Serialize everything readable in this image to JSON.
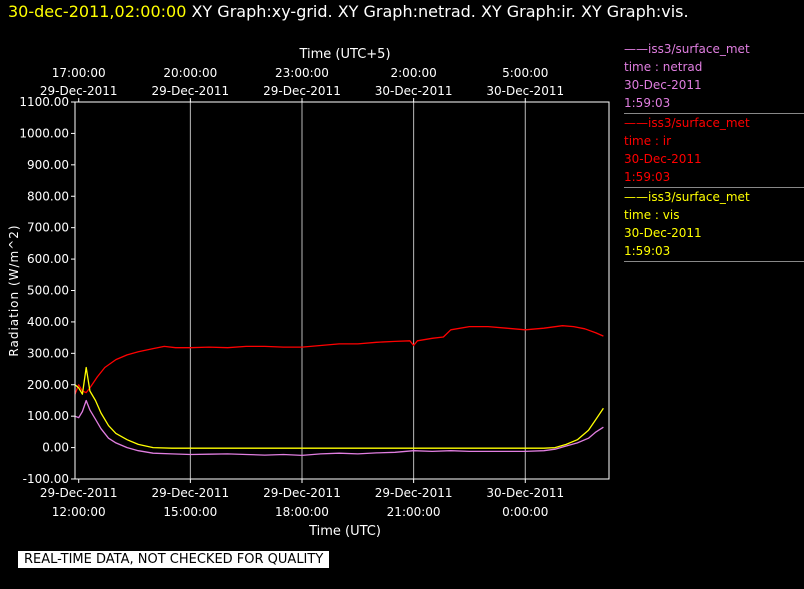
{
  "header": {
    "timestamp": "30-dec-2011,02:00:00",
    "graphs": "XY Graph:xy-grid.  XY Graph:netrad.  XY Graph:ir.  XY Graph:vis."
  },
  "legend": [
    {
      "source": "——iss3/surface_met",
      "variable": "time : netrad",
      "date": "30-Dec-2011",
      "time": "1:59:03",
      "color": "#e07ee0"
    },
    {
      "source": "——iss3/surface_met",
      "variable": "time : ir",
      "date": "30-Dec-2011",
      "time": "1:59:03",
      "color": "#ff0000"
    },
    {
      "source": "——iss3/surface_met",
      "variable": "time : vis",
      "date": "30-Dec-2011",
      "time": "1:59:03",
      "color": "#ffff00"
    }
  ],
  "notice": "REAL-TIME DATA, NOT CHECKED FOR QUALITY",
  "chart_data": {
    "type": "line",
    "title": "",
    "xlabel": "Time (UTC)",
    "x2label": "Time (UTC+5)",
    "ylabel": "Radiation (W/m^2)",
    "xlim": [
      11.9,
      26.25
    ],
    "ylim": [
      -100,
      1100
    ],
    "yticks": [
      "-100.00",
      "0.00",
      "100.00",
      "200.00",
      "300.00",
      "400.00",
      "500.00",
      "600.00",
      "700.00",
      "800.00",
      "900.00",
      "1000.00",
      "1100.00"
    ],
    "xticks": [
      {
        "x": 12,
        "date": "29-Dec-2011",
        "time": "12:00:00"
      },
      {
        "x": 15,
        "date": "29-Dec-2011",
        "time": "15:00:00"
      },
      {
        "x": 18,
        "date": "29-Dec-2011",
        "time": "18:00:00"
      },
      {
        "x": 21,
        "date": "29-Dec-2011",
        "time": "21:00:00"
      },
      {
        "x": 24,
        "date": "30-Dec-2011",
        "time": "0:00:00"
      }
    ],
    "x2ticks": [
      {
        "x": 12,
        "time": "17:00:00",
        "date": "29-Dec-2011"
      },
      {
        "x": 15,
        "time": "20:00:00",
        "date": "29-Dec-2011"
      },
      {
        "x": 18,
        "time": "23:00:00",
        "date": "29-Dec-2011"
      },
      {
        "x": 21,
        "time": "2:00:00",
        "date": "30-Dec-2011"
      },
      {
        "x": 24,
        "time": "5:00:00",
        "date": "30-Dec-2011"
      }
    ],
    "grid": "vertical",
    "legend": "right",
    "series": [
      {
        "key": "netrad",
        "color": "#e07ee0",
        "x": [
          11.9,
          12.0,
          12.1,
          12.2,
          12.3,
          12.45,
          12.6,
          12.8,
          13.0,
          13.3,
          13.6,
          14.0,
          14.5,
          15.0,
          15.5,
          16.0,
          16.5,
          17.0,
          17.5,
          18.0,
          18.5,
          19.0,
          19.5,
          20.0,
          20.5,
          21.0,
          21.5,
          22.0,
          22.5,
          23.0,
          23.5,
          24.0,
          24.5,
          24.8,
          25.1,
          25.4,
          25.7,
          25.9,
          26.1
        ],
        "y": [
          100,
          95,
          115,
          150,
          120,
          90,
          60,
          30,
          15,
          0,
          -10,
          -18,
          -20,
          -22,
          -21,
          -20,
          -22,
          -24,
          -22,
          -25,
          -20,
          -18,
          -20,
          -17,
          -15,
          -10,
          -12,
          -10,
          -12,
          -12,
          -12,
          -12,
          -10,
          -5,
          5,
          15,
          30,
          50,
          65
        ]
      },
      {
        "key": "ir",
        "color": "#ff0000",
        "x": [
          11.9,
          12.0,
          12.1,
          12.2,
          12.3,
          12.5,
          12.7,
          13.0,
          13.3,
          13.6,
          14.0,
          14.3,
          14.6,
          15.0,
          15.5,
          16.0,
          16.5,
          17.0,
          17.5,
          18.0,
          18.5,
          19.0,
          19.5,
          20.0,
          20.5,
          20.9,
          21.0,
          21.1,
          21.5,
          21.8,
          22.0,
          22.5,
          23.0,
          23.5,
          24.0,
          24.5,
          25.0,
          25.3,
          25.6,
          25.9,
          26.1
        ],
        "y": [
          170,
          200,
          180,
          175,
          190,
          225,
          255,
          280,
          295,
          305,
          315,
          322,
          318,
          318,
          320,
          318,
          322,
          322,
          320,
          320,
          325,
          330,
          330,
          335,
          338,
          340,
          325,
          340,
          348,
          352,
          375,
          385,
          385,
          380,
          375,
          380,
          388,
          385,
          378,
          365,
          355
        ]
      },
      {
        "key": "vis",
        "color": "#ffff00",
        "x": [
          11.9,
          12.0,
          12.1,
          12.2,
          12.3,
          12.45,
          12.6,
          12.8,
          13.0,
          13.3,
          13.6,
          14.0,
          14.5,
          15.0,
          16.0,
          17.0,
          18.0,
          19.0,
          20.0,
          21.0,
          22.0,
          23.0,
          24.0,
          24.5,
          24.8,
          25.1,
          25.4,
          25.7,
          25.9,
          26.1
        ],
        "y": [
          200,
          190,
          170,
          255,
          180,
          150,
          110,
          70,
          45,
          25,
          10,
          0,
          -2,
          -2,
          -2,
          -2,
          -2,
          -2,
          -2,
          -2,
          -2,
          -2,
          -2,
          -2,
          0,
          10,
          25,
          55,
          90,
          125
        ]
      }
    ]
  }
}
